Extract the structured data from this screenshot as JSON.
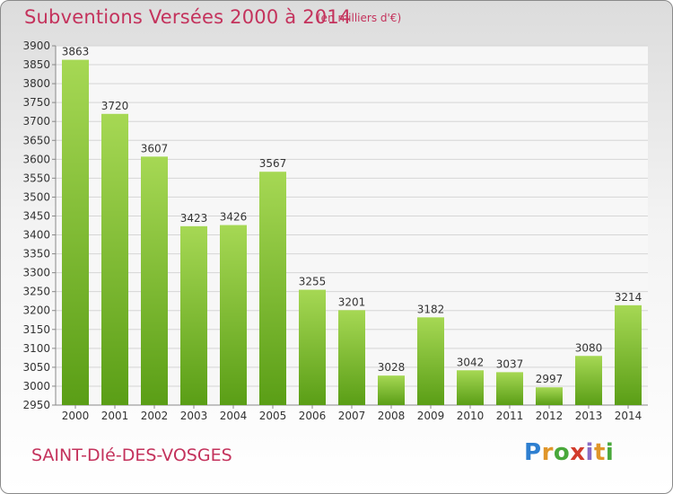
{
  "header": {
    "title": "Subventions Versées 2000 à 2014",
    "subtitle": "(en milliers d'€)"
  },
  "footer": {
    "city": "SAINT-DIé-DES-VOSGES",
    "logo": "Proxiti"
  },
  "colors": {
    "title": "#c4325c",
    "bar_top": "#a6d854",
    "bar_bottom": "#5a9e16",
    "grid": "#d6d6d6"
  },
  "chart_data": {
    "type": "bar",
    "categories": [
      "2000",
      "2001",
      "2002",
      "2003",
      "2004",
      "2005",
      "2006",
      "2007",
      "2008",
      "2009",
      "2010",
      "2011",
      "2012",
      "2013",
      "2014"
    ],
    "values": [
      3863,
      3720,
      3607,
      3423,
      3426,
      3567,
      3255,
      3201,
      3028,
      3182,
      3042,
      3037,
      2997,
      3080,
      3214
    ],
    "ylim": [
      2950,
      3900
    ],
    "ytick_step": 50,
    "grid": true,
    "data_labels": true
  }
}
